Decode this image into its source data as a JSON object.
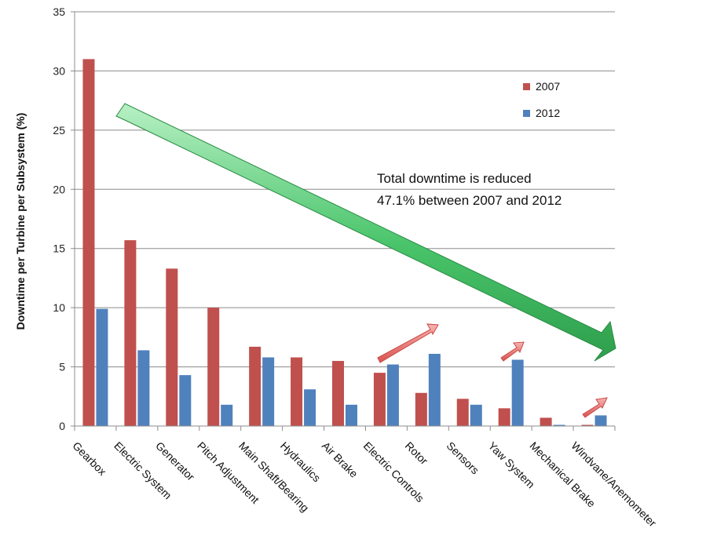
{
  "chart_data": {
    "type": "bar",
    "title": "",
    "xlabel": "",
    "ylabel": "Downtime per Turbine per Subsystem (%)",
    "ylim": [
      0,
      35
    ],
    "yticks": [
      0,
      5,
      10,
      15,
      20,
      25,
      30,
      35
    ],
    "grid": true,
    "legend_position": "top-right",
    "categories": [
      "Gearbox",
      "Electric System",
      "Generator",
      "Pitch Adjustment",
      "Main Shaft/Bearing",
      "Hydraulics",
      "Air Brake",
      "Electric Controls",
      "Rotor",
      "Sensors",
      "Yaw System",
      "Mechanical Brake",
      "Windvane/Anemometer"
    ],
    "series": [
      {
        "name": "2007",
        "color": "#c0504d",
        "values": [
          31.0,
          15.7,
          13.3,
          10.0,
          6.7,
          5.8,
          5.5,
          4.5,
          2.8,
          2.3,
          1.5,
          0.7,
          0.1
        ]
      },
      {
        "name": "2012",
        "color": "#4f81bd",
        "values": [
          9.9,
          6.4,
          4.3,
          1.8,
          5.8,
          3.1,
          1.8,
          5.2,
          6.1,
          1.8,
          5.6,
          0.1,
          0.9
        ]
      }
    ],
    "annotations": [
      {
        "text_lines": [
          "Total downtime is reduced",
          "47.1% between 2007 and 2012"
        ]
      }
    ],
    "colors": {
      "big_arrow": "#3fbf5f",
      "small_arrow": "#e5726f"
    }
  }
}
